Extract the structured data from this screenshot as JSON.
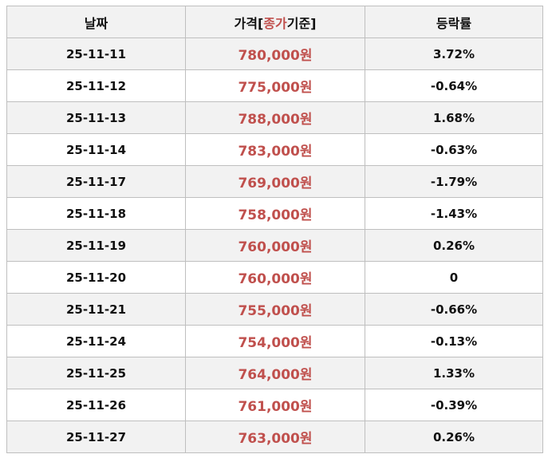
{
  "header": {
    "date": "날짜",
    "price_parts": [
      "가격[",
      "종가",
      "기준]"
    ],
    "change": "등락률"
  },
  "table": {
    "rows": [
      [
        "25-11-11",
        "780,000원",
        "3.72%"
      ],
      [
        "25-11-12",
        "775,000원",
        "-0.64%"
      ],
      [
        "25-11-13",
        "788,000원",
        "1.68%"
      ],
      [
        "25-11-14",
        "783,000원",
        "-0.63%"
      ],
      [
        "25-11-17",
        "769,000원",
        "-1.79%"
      ],
      [
        "25-11-18",
        "758,000원",
        "-1.43%"
      ],
      [
        "25-11-19",
        "760,000원",
        "0.26%"
      ],
      [
        "25-11-20",
        "760,000원",
        "0"
      ],
      [
        "25-11-21",
        "755,000원",
        "-0.66%"
      ],
      [
        "25-11-24",
        "754,000원",
        "-0.13%"
      ],
      [
        "25-11-25",
        "764,000원",
        "1.33%"
      ],
      [
        "25-11-26",
        "761,000원",
        "-0.39%"
      ],
      [
        "25-11-27",
        "763,000원",
        "0.26%"
      ]
    ]
  }
}
